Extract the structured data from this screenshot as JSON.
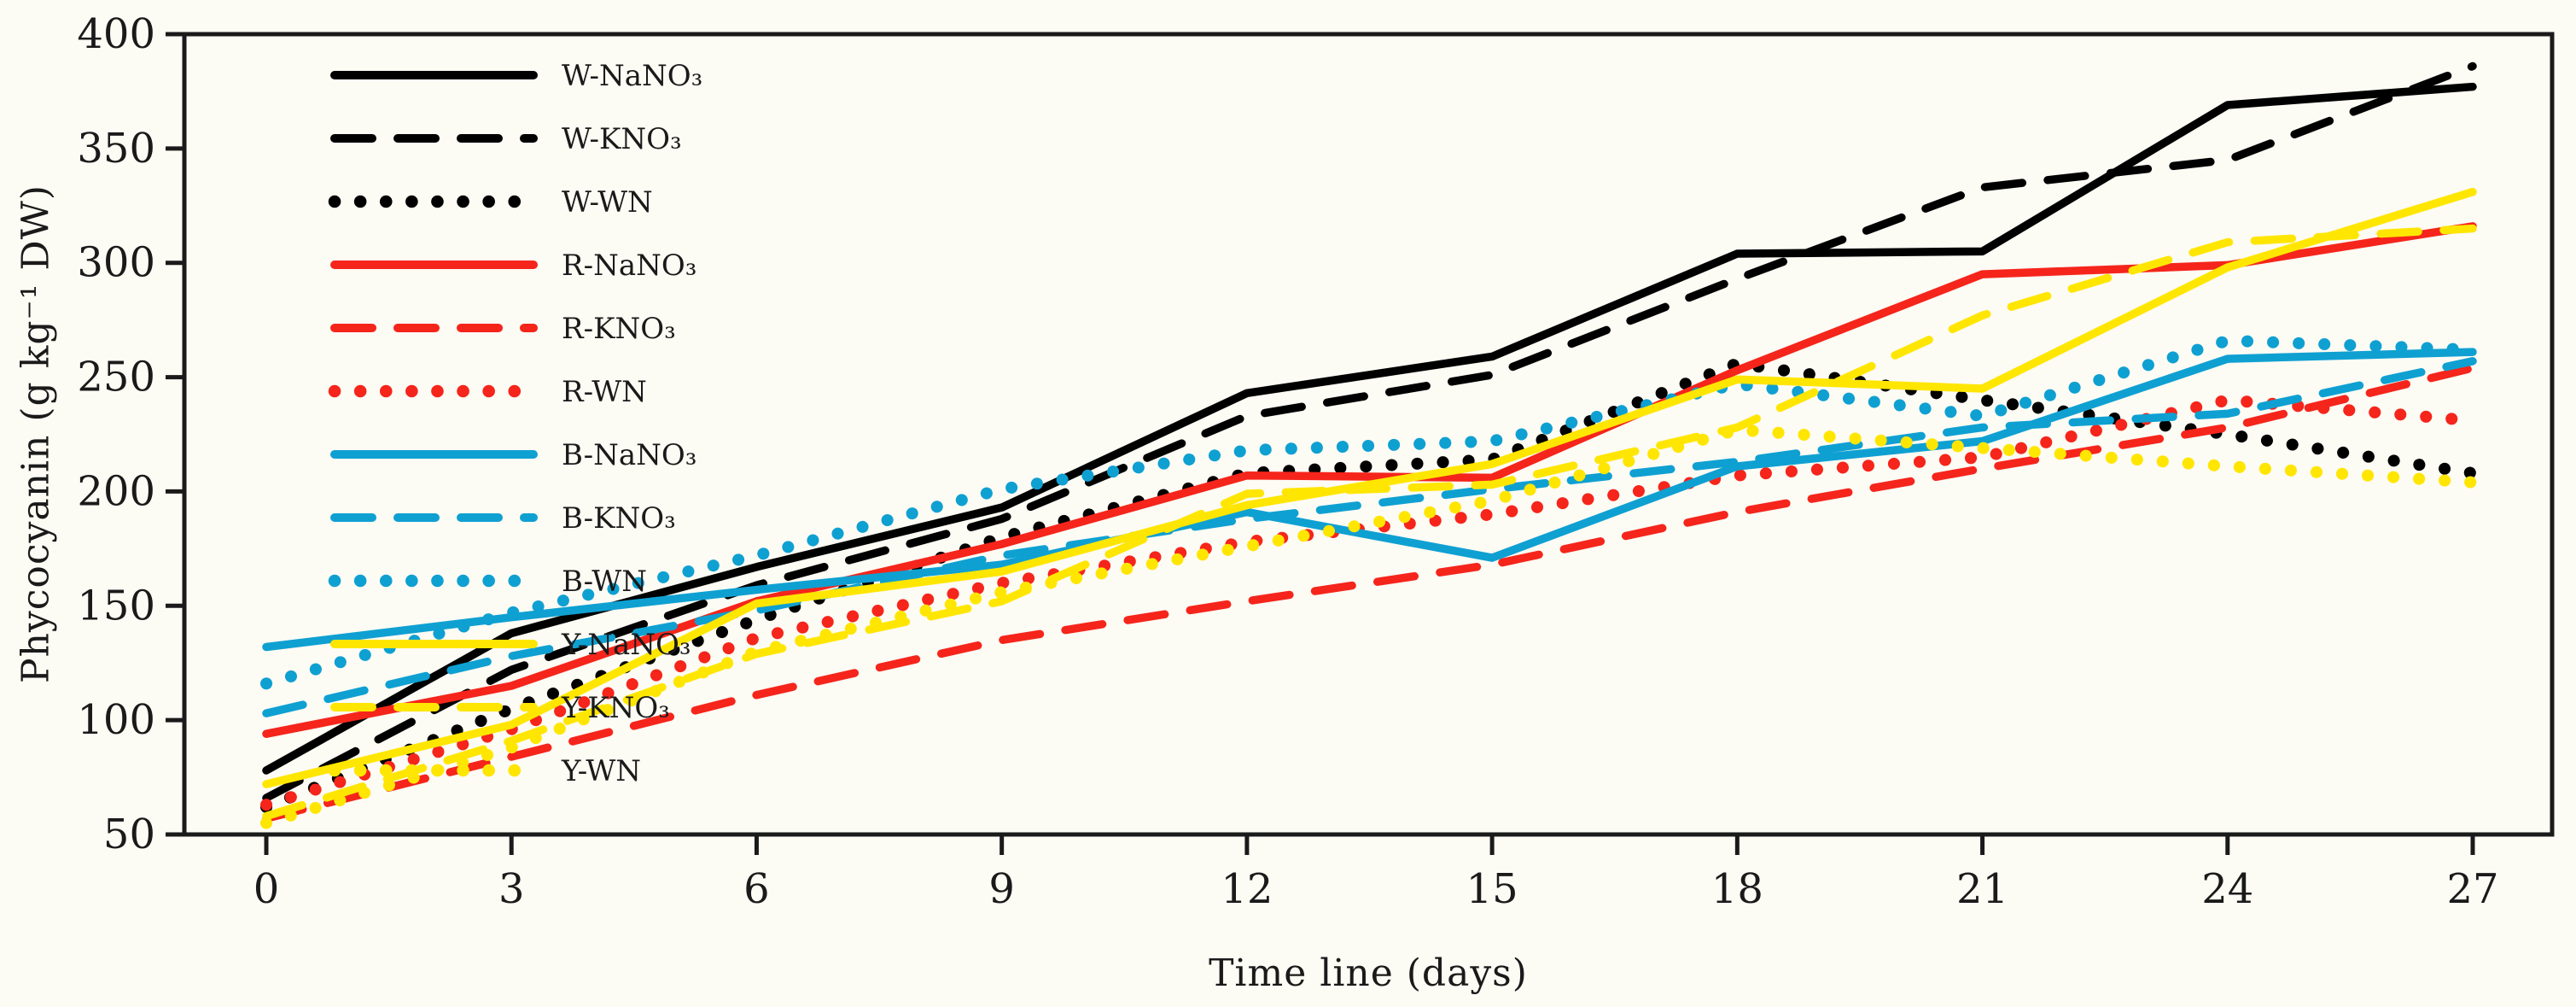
{
  "figure": {
    "background_color": "#fcfbf4",
    "frame_color": "#1a1a1a",
    "x_axis_title": "Time line (days)",
    "y_axis_title": "Phycocyanin (g kg⁻¹ DW)"
  },
  "chart_data": {
    "type": "line",
    "title": "",
    "xlabel": "Time line (days)",
    "ylabel": "Phycocyanin (g kg⁻¹ DW)",
    "x": [
      0,
      3,
      6,
      9,
      12,
      15,
      18,
      21,
      24,
      27
    ],
    "x_ticks": [
      0,
      3,
      6,
      9,
      12,
      15,
      18,
      21,
      24,
      27
    ],
    "y_ticks": [
      50,
      100,
      150,
      200,
      250,
      300,
      350,
      400
    ],
    "xlim": [
      0,
      27
    ],
    "ylim": [
      50,
      400
    ],
    "grid": false,
    "legend_position": "upper-left-inside",
    "colors": {
      "W": "#000000",
      "R": "#f5251b",
      "B": "#0fa0d2",
      "Y": "#ffe600"
    },
    "series": [
      {
        "name": "W-NaNO₃",
        "color": "#000000",
        "style": "solid",
        "values": [
          78,
          138,
          167,
          193,
          243,
          259,
          304,
          305,
          369,
          377
        ]
      },
      {
        "name": "W-KNO₃",
        "color": "#000000",
        "style": "dashed",
        "values": [
          66,
          122,
          159,
          188,
          233,
          251,
          293,
          333,
          345,
          386
        ]
      },
      {
        "name": "W-WN",
        "color": "#000000",
        "style": "dotted",
        "values": [
          62,
          105,
          144,
          180,
          208,
          214,
          256,
          240,
          225,
          208
        ]
      },
      {
        "name": "R-NaNO₃",
        "color": "#f5251b",
        "style": "solid",
        "values": [
          94,
          115,
          152,
          177,
          207,
          206,
          253,
          295,
          299,
          316
        ]
      },
      {
        "name": "R-KNO₃",
        "color": "#f5251b",
        "style": "dashed",
        "values": [
          57,
          84,
          111,
          135,
          152,
          168,
          191,
          210,
          228,
          254
        ]
      },
      {
        "name": "R-WN",
        "color": "#f5251b",
        "style": "dotted",
        "values": [
          63,
          96,
          136,
          160,
          178,
          190,
          207,
          215,
          240,
          231
        ]
      },
      {
        "name": "B-NaNO₃",
        "color": "#0fa0d2",
        "style": "solid",
        "values": [
          132,
          145,
          157,
          168,
          191,
          171,
          211,
          222,
          258,
          261
        ]
      },
      {
        "name": "B-KNO₃",
        "color": "#0fa0d2",
        "style": "dashed",
        "values": [
          103,
          128,
          148,
          172,
          188,
          201,
          213,
          228,
          234,
          257
        ]
      },
      {
        "name": "B-WN",
        "color": "#0fa0d2",
        "style": "dotted",
        "values": [
          116,
          147,
          172,
          201,
          218,
          222,
          247,
          233,
          266,
          262
        ]
      },
      {
        "name": "Y-NaNO₃",
        "color": "#ffe600",
        "style": "solid",
        "values": [
          72,
          98,
          151,
          165,
          194,
          212,
          249,
          245,
          298,
          331
        ]
      },
      {
        "name": "Y-KNO₃",
        "color": "#ffe600",
        "style": "dashed",
        "values": [
          58,
          91,
          129,
          152,
          199,
          203,
          228,
          277,
          309,
          315
        ]
      },
      {
        "name": "Y-WN",
        "color": "#ffe600",
        "style": "dotted",
        "values": [
          55,
          88,
          130,
          156,
          176,
          196,
          227,
          219,
          211,
          204
        ]
      }
    ]
  }
}
